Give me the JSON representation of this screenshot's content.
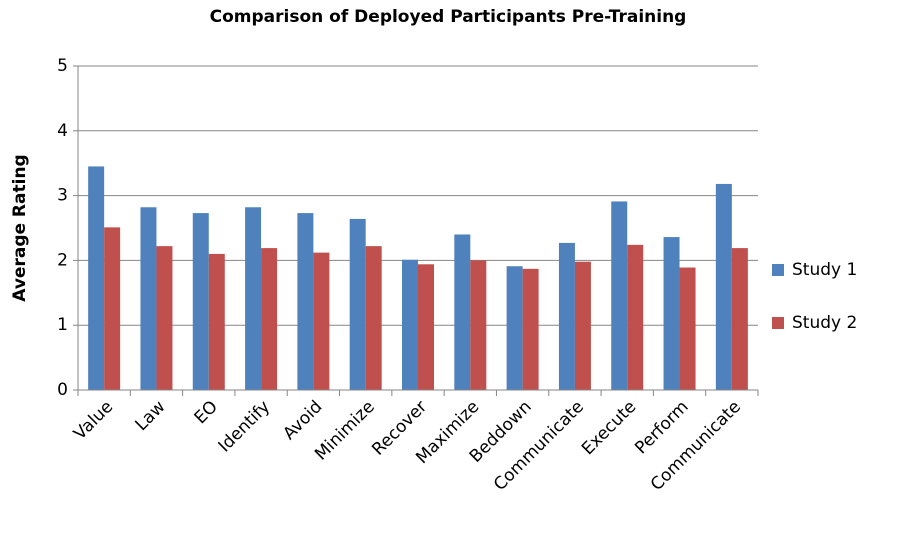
{
  "chart_data": {
    "type": "bar",
    "title": "Comparison of Deployed Participants Pre-Training",
    "y_label": "Average Rating",
    "categories": [
      "Value",
      "Law",
      "EO",
      "Identify",
      "Avoid",
      "Minimize",
      "Recover",
      "Maximize",
      "Beddown",
      "Communicate",
      "Execute",
      "Perform",
      "Communicate"
    ],
    "series": [
      {
        "name": "Study 1",
        "color": "#4f81bd",
        "values": [
          3.45,
          2.82,
          2.73,
          2.82,
          2.73,
          2.64,
          2.01,
          2.4,
          1.91,
          2.27,
          2.91,
          2.36,
          3.18
        ]
      },
      {
        "name": "Study 2",
        "color": "#c0504d",
        "values": [
          2.51,
          2.22,
          2.1,
          2.19,
          2.12,
          2.22,
          1.94,
          2.0,
          1.87,
          1.98,
          2.24,
          1.89,
          2.19
        ]
      }
    ],
    "ylim": [
      0,
      5
    ],
    "yticks": [
      0,
      1,
      2,
      3,
      4,
      5
    ],
    "grid": true,
    "legend": "right"
  }
}
